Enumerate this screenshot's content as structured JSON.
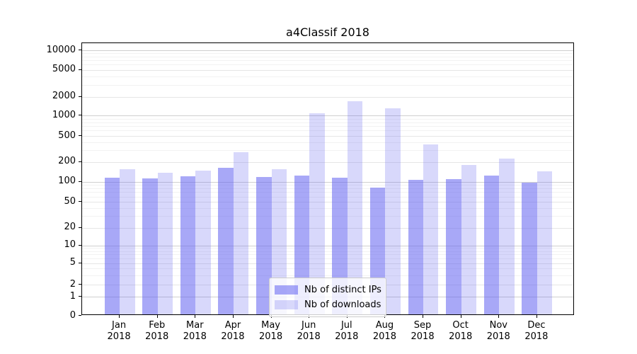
{
  "title": "a4Classif 2018",
  "colors": {
    "bar_base": "#6464f0",
    "distinct_ips_alpha": 0.56,
    "downloads_alpha": 0.25,
    "grid_decade": "#cfcfcf",
    "grid_labeled": "#e6e6e6",
    "grid_minor": "#f2f2f2",
    "axis": "#000000",
    "legend_border": "#cccccc"
  },
  "legend": {
    "items": [
      {
        "label": "Nb of distinct IPs"
      },
      {
        "label": "Nb of downloads"
      }
    ]
  },
  "chart_data": {
    "type": "bar",
    "title": "a4Classif 2018",
    "categories": [
      "Jan 2018",
      "Feb 2018",
      "Mar 2018",
      "Apr 2018",
      "May 2018",
      "Jun 2018",
      "Jul 2018",
      "Aug 2018",
      "Sep 2018",
      "Oct 2018",
      "Nov 2018",
      "Dec 2018"
    ],
    "months": [
      "Jan",
      "Feb",
      "Mar",
      "Apr",
      "May",
      "Jun",
      "Jul",
      "Aug",
      "Sep",
      "Oct",
      "Nov",
      "Dec"
    ],
    "year": "2018",
    "series": [
      {
        "name": "Nb of distinct IPs",
        "values": [
          110,
          107,
          114,
          156,
          113,
          119,
          110,
          77,
          102,
          104,
          118,
          91
        ]
      },
      {
        "name": "Nb of downloads",
        "values": [
          146,
          129,
          141,
          266,
          148,
          1040,
          1620,
          1235,
          350,
          169,
          213,
          137
        ]
      }
    ],
    "xlabel": "",
    "ylabel": "",
    "yscale": "symlog",
    "y_ticks": [
      0,
      1,
      2,
      5,
      10,
      20,
      50,
      100,
      200,
      500,
      1000,
      2000,
      5000,
      10000
    ],
    "ylim": [
      0,
      13000
    ],
    "grid": true,
    "legend_position": "lower center"
  }
}
